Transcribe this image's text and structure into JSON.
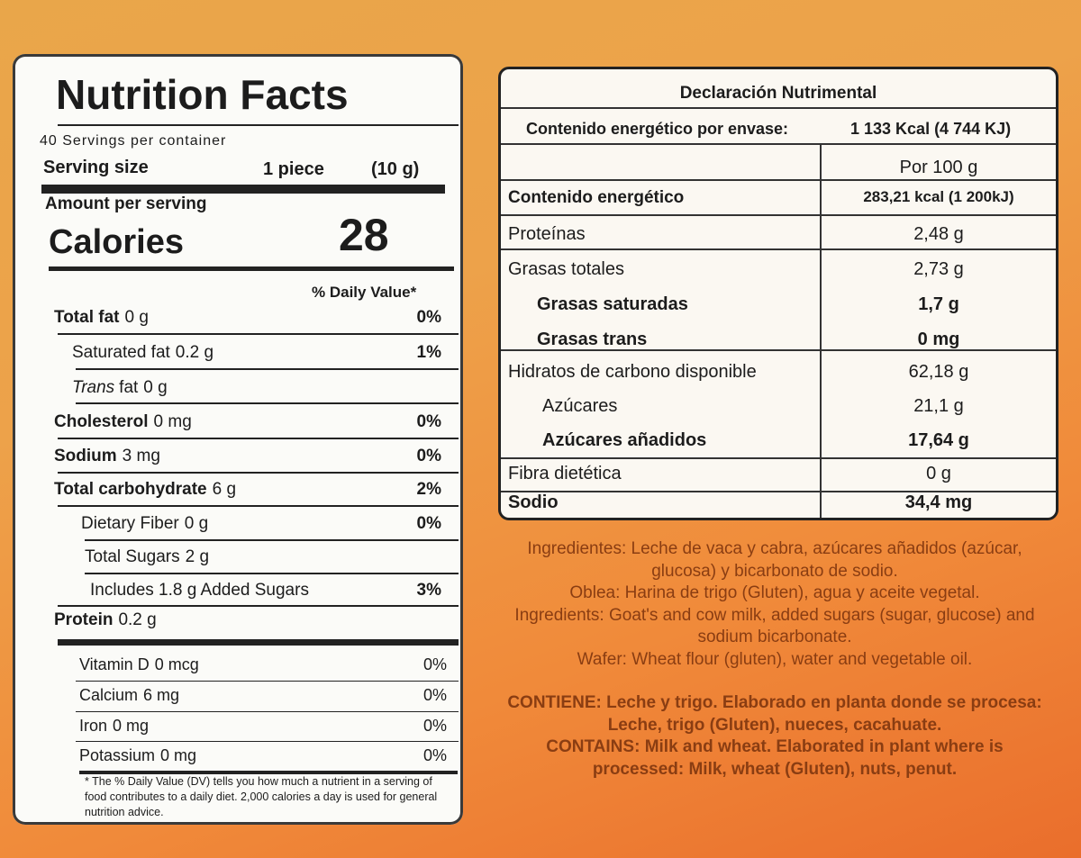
{
  "nutrition_facts": {
    "title": "Nutrition Facts",
    "servings": "40 Servings per container",
    "serving_size_label": "Serving size",
    "serving_size_value": "1 piece",
    "serving_size_grams": "(10 g)",
    "amount_per_serving": "Amount per serving",
    "calories_label": "Calories",
    "calories_value": 28,
    "dv_header": "% Daily Value*",
    "rows": [
      {
        "name": "Total fat",
        "amount": "0 g",
        "dv": "0%"
      },
      {
        "name": "Saturated fat",
        "amount": "0.2 g",
        "dv": "1%"
      },
      {
        "name_italic": "Trans",
        "name": "fat",
        "amount": "0 g"
      },
      {
        "name": "Cholesterol",
        "amount": "0 mg",
        "dv": "0%"
      },
      {
        "name": "Sodium",
        "amount": "3 mg",
        "dv": "0%"
      },
      {
        "name": "Total carbohydrate",
        "amount": "6 g",
        "dv": "2%"
      },
      {
        "name": "Dietary Fiber",
        "amount": "0 g",
        "dv": "0%"
      },
      {
        "name": "Total Sugars",
        "amount": "2 g"
      },
      {
        "name": "Includes 1.8 g Added Sugars",
        "dv": "3%"
      },
      {
        "name": "Protein",
        "amount": "0.2 g"
      }
    ],
    "vitamins": [
      {
        "name": "Vitamin D",
        "amount": "0 mcg",
        "dv": "0%"
      },
      {
        "name": "Calcium",
        "amount": "6 mg",
        "dv": "0%"
      },
      {
        "name": "Iron",
        "amount": "0 mg",
        "dv": "0%"
      },
      {
        "name": "Potassium",
        "amount": "0 mg",
        "dv": "0%"
      }
    ],
    "footnote": "* The % Daily Value (DV) tells you how much a nutrient in a serving of food contributes to a daily diet. 2,000 calories a day is used for general nutrition advice."
  },
  "declaracion": {
    "title": "Declaración Nutrimental",
    "energy_label": "Contenido energético por envase:",
    "energy_value": "1 133 Kcal (4 744 KJ)",
    "column_header": "Por 100 g",
    "rows": [
      {
        "name": "Contenido energético",
        "value": "283,21 kcal (1 200kJ)"
      },
      {
        "name": "Proteínas",
        "value": "2,48 g"
      },
      {
        "name": "Grasas totales",
        "value": "2,73 g"
      },
      {
        "name": "Grasas saturadas",
        "value": "1,7 g"
      },
      {
        "name": "Grasas trans",
        "value": "0 mg"
      },
      {
        "name": "Hidratos de carbono disponible",
        "value": "62,18 g"
      },
      {
        "name": "Azúcares",
        "value": "21,1 g"
      },
      {
        "name": "Azúcares añadidos",
        "value": "17,64 g"
      },
      {
        "name": "Fibra dietética",
        "value": "0 g"
      },
      {
        "name": "Sodio",
        "value": "34,4 mg"
      }
    ]
  },
  "ingredients": [
    {
      "label": "Ingredientes:",
      "text": "Leche de vaca y cabra, azúcares añadidos (azúcar, glucosa) y bicarbonato de sodio."
    },
    {
      "label": "Oblea:",
      "text": "Harina de trigo (Gluten), agua y aceite vegetal."
    },
    {
      "label": "Ingredients:",
      "text": "Goat's and cow milk, added sugars (sugar, glucose) and sodium bicarbonate."
    },
    {
      "label": "Wafer:",
      "text": "Wheat flour (gluten), water and vegetable oil."
    }
  ],
  "allergens": [
    {
      "label": "CONTIENE:",
      "text": "Leche y trigo. Elaborado en planta donde se procesa: Leche, trigo (Gluten), nueces, cacahuate."
    },
    {
      "label": "CONTAINS:",
      "text": "Milk and wheat. Elaborated in plant where is processed: Milk, wheat (Gluten), nuts, penut."
    }
  ]
}
